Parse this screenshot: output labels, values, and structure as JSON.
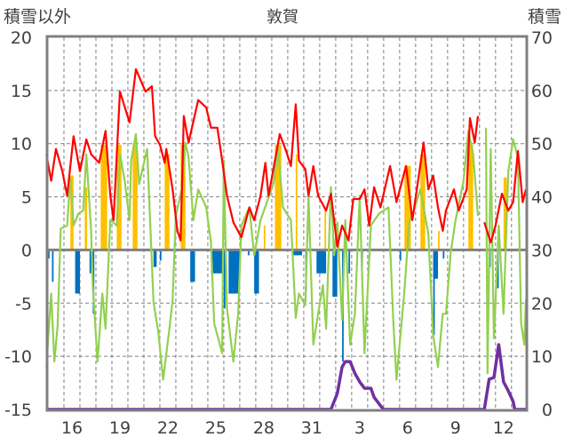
{
  "chart_data": {
    "type": "line",
    "title": "敦賀",
    "ylabel_left": "積雪以外",
    "ylabel_right": "積雪",
    "ylim_left": [
      -15,
      20
    ],
    "ylim_right": [
      0,
      70
    ],
    "yticks_left": [
      {
        "v": 20,
        "label": "20"
      },
      {
        "v": 15,
        "label": "15"
      },
      {
        "v": 10,
        "label": "10"
      },
      {
        "v": 5,
        "label": "5"
      },
      {
        "v": 0,
        "label": "0"
      },
      {
        "v": -5,
        "label": "-5"
      },
      {
        "v": -10,
        "label": "-10"
      },
      {
        "v": -15,
        "label": "-15"
      }
    ],
    "yticks_right": [
      {
        "v": 70,
        "label": "70"
      },
      {
        "v": 60,
        "label": "60"
      },
      {
        "v": 50,
        "label": "50"
      },
      {
        "v": 40,
        "label": "40"
      },
      {
        "v": 30,
        "label": "30"
      },
      {
        "v": 20,
        "label": "20"
      },
      {
        "v": 10,
        "label": "10"
      },
      {
        "v": 0,
        "label": "0"
      }
    ],
    "xlim_days": [
      14.5,
      44.4
    ],
    "xticks": [
      {
        "day": 16,
        "label": "16"
      },
      {
        "day": 19,
        "label": "19"
      },
      {
        "day": 22,
        "label": "22"
      },
      {
        "day": 25,
        "label": "25"
      },
      {
        "day": 28,
        "label": "28"
      },
      {
        "day": 31,
        "label": "31"
      },
      {
        "day": 34,
        "label": "3"
      },
      {
        "day": 37,
        "label": "6"
      },
      {
        "day": 40,
        "label": "9"
      },
      {
        "day": 43,
        "label": "12"
      }
    ],
    "grid": true,
    "colors": {
      "red": "#ff0000",
      "green": "#92d050",
      "orange": "#ffc000",
      "blue": "#0070c0",
      "purple": "#7030a0",
      "axis": "#808080"
    },
    "series": [
      {
        "name": "green",
        "axis": "left",
        "kind": "line",
        "points": [
          [
            14.4,
            -11.0
          ],
          [
            14.7,
            -4.1
          ],
          [
            14.9,
            -10.5
          ],
          [
            15.1,
            -7.2
          ],
          [
            15.3,
            2.0
          ],
          [
            15.7,
            2.3
          ],
          [
            15.9,
            6.8
          ],
          [
            16.1,
            2.3
          ],
          [
            16.4,
            3.4
          ],
          [
            16.7,
            3.7
          ],
          [
            16.9,
            9.0
          ],
          [
            17.2,
            1.8
          ],
          [
            17.3,
            -3.3
          ],
          [
            17.6,
            -10.5
          ],
          [
            17.9,
            -4.1
          ],
          [
            18.1,
            -7.4
          ],
          [
            18.4,
            2.8
          ],
          [
            18.8,
            2.3
          ],
          [
            19.0,
            9.0
          ],
          [
            19.3,
            6.5
          ],
          [
            19.6,
            2.8
          ],
          [
            19.7,
            8.4
          ],
          [
            20.0,
            10.9
          ],
          [
            20.2,
            6.2
          ],
          [
            20.7,
            9.5
          ],
          [
            20.9,
            2.3
          ],
          [
            21.1,
            -4.9
          ],
          [
            21.4,
            -7.7
          ],
          [
            21.7,
            -12.2
          ],
          [
            22.1,
            -7.4
          ],
          [
            22.3,
            -4.7
          ],
          [
            22.5,
            3.2
          ],
          [
            22.9,
            5.9
          ],
          [
            23.1,
            10.1
          ],
          [
            23.3,
            8.7
          ],
          [
            23.6,
            2.8
          ],
          [
            23.9,
            5.7
          ],
          [
            24.4,
            4.0
          ],
          [
            24.7,
            0.7
          ],
          [
            24.9,
            -6.9
          ],
          [
            25.4,
            -9.7
          ],
          [
            25.5,
            8.4
          ],
          [
            25.7,
            -5.5
          ],
          [
            26.1,
            -10.5
          ],
          [
            26.4,
            -6.0
          ],
          [
            26.6,
            2.3
          ],
          [
            27.1,
            4.0
          ],
          [
            27.4,
            -0.5
          ],
          [
            27.8,
            2.8
          ],
          [
            28.6,
            6.2
          ],
          [
            28.9,
            9.5
          ],
          [
            29.2,
            4.0
          ],
          [
            29.7,
            2.8
          ],
          [
            30.0,
            -6.4
          ],
          [
            30.2,
            -4.1
          ],
          [
            30.6,
            -5.2
          ],
          [
            30.8,
            5.1
          ],
          [
            31.1,
            -8.9
          ],
          [
            31.4,
            -6.0
          ],
          [
            31.7,
            -3.3
          ],
          [
            31.9,
            -7.4
          ],
          [
            32.2,
            5.9
          ],
          [
            32.4,
            -0.5
          ],
          [
            32.6,
            2.6
          ],
          [
            32.9,
            -6.6
          ],
          [
            33.1,
            2.8
          ],
          [
            33.4,
            -8.9
          ],
          [
            33.7,
            -6.0
          ],
          [
            34.0,
            5.1
          ],
          [
            34.3,
            -9.7
          ],
          [
            34.7,
            2.3
          ],
          [
            35.2,
            3.4
          ],
          [
            35.8,
            4.0
          ],
          [
            36.1,
            -6.6
          ],
          [
            36.3,
            -12.2
          ],
          [
            36.8,
            -3.8
          ],
          [
            37.1,
            2.6
          ],
          [
            37.4,
            3.7
          ],
          [
            37.8,
            5.7
          ],
          [
            38.3,
            1.5
          ],
          [
            38.6,
            -8.0
          ],
          [
            38.9,
            -11.0
          ],
          [
            39.2,
            -6.0
          ],
          [
            39.4,
            -6.0
          ],
          [
            39.7,
            -0.2
          ],
          [
            40.0,
            2.8
          ],
          [
            40.5,
            6.5
          ],
          [
            40.8,
            11.2
          ],
          [
            41.1,
            9.0
          ],
          [
            41.4,
            3.2
          ],
          null,
          [
            41.9,
            11.5
          ],
          [
            42.0,
            -11.6
          ],
          [
            42.2,
            9.5
          ],
          [
            42.4,
            -8.3
          ],
          [
            42.7,
            2.3
          ],
          [
            43.0,
            -6.0
          ],
          [
            43.3,
            7.4
          ],
          [
            43.6,
            10.4
          ],
          [
            43.9,
            8.7
          ],
          [
            44.1,
            -6.9
          ],
          [
            44.3,
            -8.9
          ],
          [
            44.4,
            -4.7
          ]
        ]
      },
      {
        "name": "red",
        "axis": "left",
        "kind": "line",
        "points": [
          [
            14.4,
            9.0
          ],
          [
            14.7,
            6.5
          ],
          [
            15.0,
            9.5
          ],
          [
            15.4,
            7.4
          ],
          [
            15.7,
            5.1
          ],
          [
            16.1,
            10.7
          ],
          [
            16.5,
            7.4
          ],
          [
            16.9,
            10.4
          ],
          [
            17.2,
            9.0
          ],
          [
            17.7,
            8.2
          ],
          [
            18.1,
            11.2
          ],
          [
            18.4,
            5.1
          ],
          [
            18.6,
            2.8
          ],
          [
            19.0,
            14.9
          ],
          [
            19.6,
            12.0
          ],
          [
            20.0,
            17.0
          ],
          [
            20.6,
            14.9
          ],
          [
            21.0,
            15.4
          ],
          [
            21.2,
            10.7
          ],
          [
            21.5,
            9.9
          ],
          [
            21.8,
            8.2
          ],
          [
            21.9,
            9.5
          ],
          [
            22.3,
            5.7
          ],
          [
            22.6,
            1.8
          ],
          [
            22.8,
            0.9
          ],
          [
            23.0,
            12.6
          ],
          [
            23.3,
            10.1
          ],
          [
            23.9,
            14.1
          ],
          [
            24.4,
            13.4
          ],
          [
            24.7,
            11.5
          ],
          [
            25.1,
            11.5
          ],
          [
            25.4,
            8.4
          ],
          [
            25.7,
            5.1
          ],
          [
            26.1,
            2.6
          ],
          [
            26.6,
            1.2
          ],
          [
            27.1,
            4.0
          ],
          [
            27.4,
            2.8
          ],
          [
            27.8,
            5.1
          ],
          [
            28.1,
            8.2
          ],
          [
            28.3,
            5.1
          ],
          [
            29.0,
            10.9
          ],
          [
            29.4,
            9.3
          ],
          [
            29.7,
            7.9
          ],
          [
            30.0,
            13.7
          ],
          [
            30.2,
            8.4
          ],
          [
            30.6,
            7.6
          ],
          [
            30.8,
            5.1
          ],
          [
            31.1,
            7.9
          ],
          [
            31.4,
            5.1
          ],
          [
            31.9,
            3.7
          ],
          [
            32.2,
            5.3
          ],
          [
            32.6,
            0.3
          ],
          [
            32.9,
            2.3
          ],
          [
            33.3,
            0.9
          ],
          [
            33.6,
            4.8
          ],
          [
            34.0,
            4.8
          ],
          [
            34.3,
            5.7
          ],
          [
            34.6,
            2.3
          ],
          [
            34.9,
            5.9
          ],
          [
            35.3,
            4.0
          ],
          [
            35.9,
            7.9
          ],
          [
            36.3,
            4.5
          ],
          [
            36.9,
            7.9
          ],
          [
            37.3,
            2.8
          ],
          [
            38.0,
            10.1
          ],
          [
            38.3,
            5.7
          ],
          [
            38.6,
            7.0
          ],
          [
            38.9,
            4.0
          ],
          [
            39.2,
            1.8
          ],
          [
            39.4,
            3.7
          ],
          [
            39.9,
            5.7
          ],
          [
            40.2,
            3.7
          ],
          [
            40.7,
            5.7
          ],
          [
            40.9,
            12.4
          ],
          [
            41.2,
            10.1
          ],
          [
            41.4,
            12.6
          ],
          null,
          [
            41.8,
            2.6
          ],
          [
            42.2,
            0.7
          ],
          [
            42.5,
            2.3
          ],
          [
            42.9,
            5.3
          ],
          [
            43.3,
            3.7
          ],
          [
            43.6,
            4.5
          ],
          [
            43.9,
            9.3
          ],
          [
            44.2,
            4.5
          ],
          [
            44.4,
            5.7
          ]
        ]
      },
      {
        "name": "orange",
        "axis": "left",
        "kind": "bar",
        "bars": [
          [
            15.9,
            16.1,
            7.0
          ],
          [
            16.8,
            16.95,
            5.9
          ],
          [
            17.8,
            18.2,
            9.9
          ],
          [
            18.8,
            19.1,
            9.9
          ],
          [
            19.8,
            20.1,
            9.9
          ],
          [
            21.8,
            22.1,
            9.0
          ],
          [
            22.8,
            23.1,
            9.9
          ],
          [
            28.0,
            28.1,
            2.3
          ],
          [
            28.7,
            29.1,
            9.9
          ],
          [
            30.0,
            30.1,
            9.0
          ],
          [
            31.8,
            31.9,
            4.0
          ],
          [
            36.8,
            37.2,
            7.9
          ],
          [
            37.8,
            38.1,
            9.0
          ],
          [
            38.9,
            39.0,
            1.8
          ],
          [
            40.8,
            41.1,
            9.9
          ],
          [
            43.0,
            43.2,
            6.8
          ]
        ]
      },
      {
        "name": "blue",
        "axis": "left",
        "kind": "bar",
        "bars": [
          [
            14.5,
            14.6,
            -0.8
          ],
          [
            14.75,
            14.85,
            -3.0
          ],
          [
            16.2,
            16.5,
            -4.1
          ],
          [
            17.1,
            17.2,
            -2.2
          ],
          [
            17.3,
            17.4,
            -6.0
          ],
          [
            21.1,
            21.3,
            -1.6
          ],
          [
            21.5,
            21.6,
            -1.0
          ],
          [
            23.4,
            23.7,
            -3.0
          ],
          [
            24.7,
            25.4,
            -2.2
          ],
          [
            25.5,
            25.6,
            -5.5
          ],
          [
            25.8,
            26.5,
            -4.1
          ],
          [
            27.0,
            27.1,
            -0.5
          ],
          [
            27.4,
            27.7,
            -4.1
          ],
          [
            29.8,
            30.4,
            -0.5
          ],
          [
            30.6,
            30.7,
            -3.8
          ],
          [
            31.3,
            31.9,
            -2.2
          ],
          [
            32.3,
            32.6,
            -4.4
          ],
          [
            32.9,
            33.0,
            -10.5
          ],
          [
            33.3,
            33.4,
            -2.2
          ],
          [
            34.1,
            34.2,
            -1.6
          ],
          [
            36.5,
            36.6,
            -1.0
          ],
          [
            38.6,
            38.9,
            -2.7
          ],
          [
            38.6,
            38.7,
            -8.0
          ],
          [
            39.2,
            39.3,
            -0.8
          ],
          [
            42.1,
            42.2,
            -1.6
          ],
          [
            42.6,
            42.7,
            -3.6
          ]
        ]
      },
      {
        "name": "snow_depth",
        "axis": "right",
        "kind": "line",
        "points": [
          [
            14.4,
            0
          ],
          [
            32.2,
            0
          ],
          [
            32.6,
            3
          ],
          [
            32.9,
            8
          ],
          [
            33.1,
            9
          ],
          [
            33.4,
            9
          ],
          [
            33.7,
            6.8
          ],
          [
            34.0,
            5.2
          ],
          [
            34.3,
            4
          ],
          [
            34.7,
            4
          ],
          [
            34.9,
            2.3
          ],
          [
            35.3,
            0.7
          ],
          [
            35.5,
            0
          ],
          [
            41.8,
            0
          ],
          [
            42.1,
            5.7
          ],
          [
            42.4,
            6
          ],
          [
            42.7,
            12.2
          ],
          [
            43.0,
            5.2
          ],
          [
            43.3,
            3.5
          ],
          [
            43.6,
            1.5
          ],
          [
            43.7,
            0
          ],
          [
            44.4,
            0
          ]
        ]
      }
    ]
  }
}
